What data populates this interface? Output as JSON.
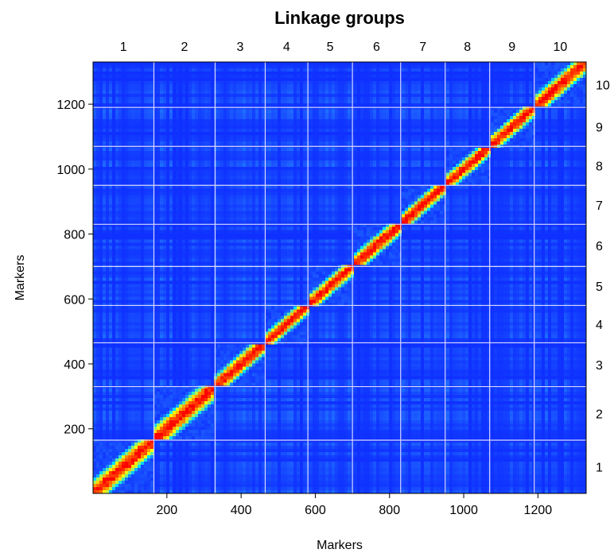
{
  "chart_data": {
    "type": "heatmap",
    "title": "Linkage groups",
    "xlabel": "Markers",
    "ylabel": "Markers",
    "n_markers": 1330,
    "xlim": [
      1,
      1330
    ],
    "ylim": [
      1,
      1330
    ],
    "x_ticks": [
      200,
      400,
      600,
      800,
      1000,
      1200
    ],
    "y_ticks": [
      200,
      400,
      600,
      800,
      1000,
      1200
    ],
    "group_boundaries": [
      1,
      165,
      330,
      465,
      580,
      700,
      830,
      950,
      1070,
      1190,
      1330
    ],
    "linkage_groups": [
      "1",
      "2",
      "3",
      "4",
      "5",
      "6",
      "7",
      "8",
      "9",
      "10"
    ],
    "colors": {
      "low": "#0a1fff",
      "mid_low": "#1e64ff",
      "mid": "#00e0ff",
      "mid_high": "#ffff00",
      "high": "#ff0000",
      "grid_line": "#d8d8ff"
    },
    "grid": true
  }
}
